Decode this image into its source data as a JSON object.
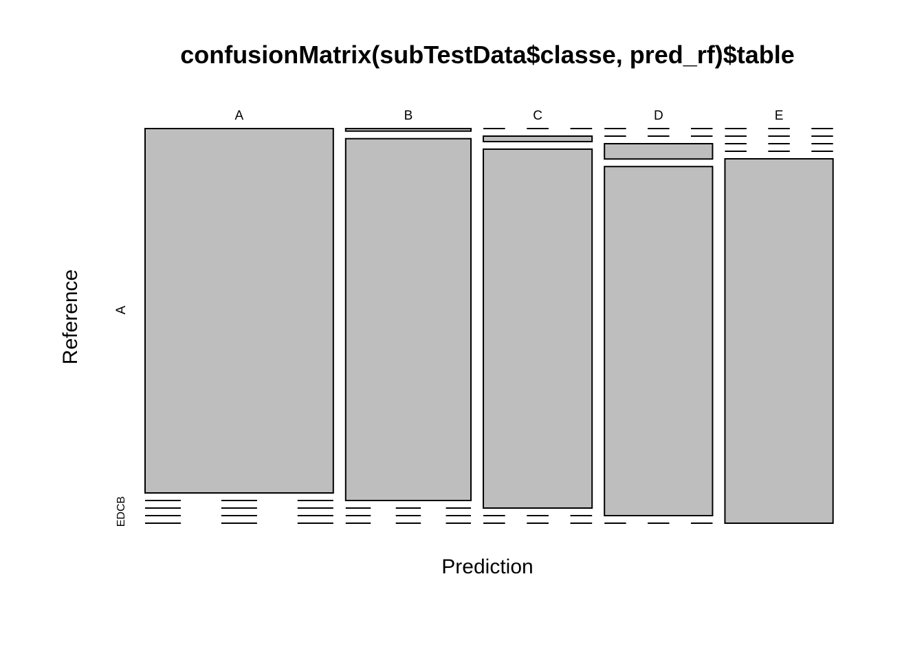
{
  "chart_data": {
    "type": "mosaic",
    "title": "confusionMatrix(subTestData$classe, pred_rf)$table",
    "xlabel": "Prediction",
    "ylabel": "Reference",
    "x_categories": [
      "A",
      "B",
      "C",
      "D",
      "E"
    ],
    "y_categories": [
      "A",
      "B",
      "C",
      "D",
      "E"
    ],
    "y_tick_labels": [
      "A",
      "EDCB"
    ],
    "cell_fill": "#bebebe",
    "cell_stroke": "#000000",
    "column_proportions": [
      0.296,
      0.197,
      0.171,
      0.17,
      0.17
    ],
    "cell_proportions": [
      [
        1.0,
        0.0,
        0.0,
        0.0,
        0.0
      ],
      [
        0.007,
        0.993,
        0.0,
        0.0,
        0.0
      ],
      [
        0.0,
        0.015,
        0.985,
        0.0,
        0.0
      ],
      [
        0.0,
        0.0,
        0.042,
        0.958,
        0.0
      ],
      [
        0.0,
        0.0,
        0.0,
        0.0,
        1.0
      ]
    ]
  }
}
